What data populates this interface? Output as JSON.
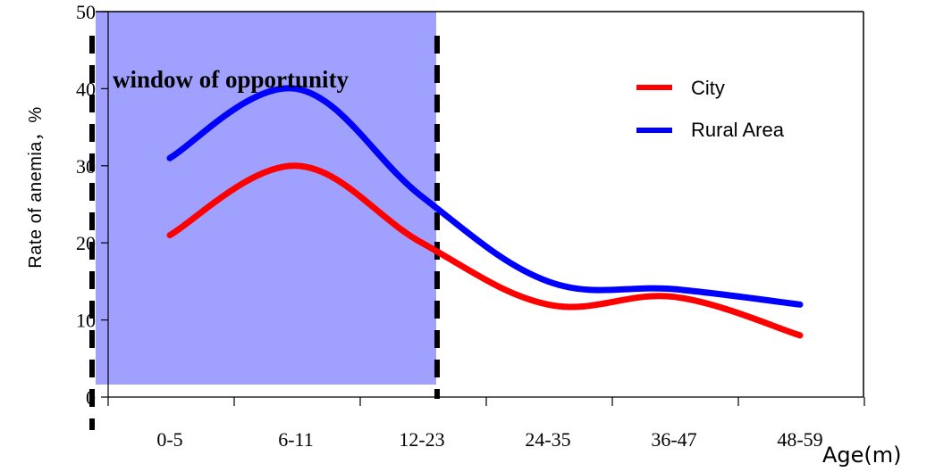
{
  "chart_data": {
    "type": "line",
    "title": "",
    "xlabel": "Age(m)",
    "ylabel": "Rate of anemia，%",
    "categories": [
      "0-5",
      "6-11",
      "12-23",
      "24-35",
      "36-47",
      "48-59"
    ],
    "ylim": [
      0,
      50
    ],
    "yticks": [
      0,
      10,
      20,
      30,
      40,
      50
    ],
    "grid": false,
    "legend_position": "top-right",
    "series": [
      {
        "name": "City",
        "color": "#ff0000",
        "values": [
          21,
          30,
          20,
          12,
          13,
          8
        ]
      },
      {
        "name": "Rural Area",
        "color": "#0000ff",
        "values": [
          31,
          40,
          26,
          15,
          14,
          12
        ]
      }
    ],
    "annotation": {
      "text": "window of opportunity",
      "shaded_range": [
        "0-5",
        "12-23"
      ],
      "shade_color": "#a0a0ff"
    }
  }
}
